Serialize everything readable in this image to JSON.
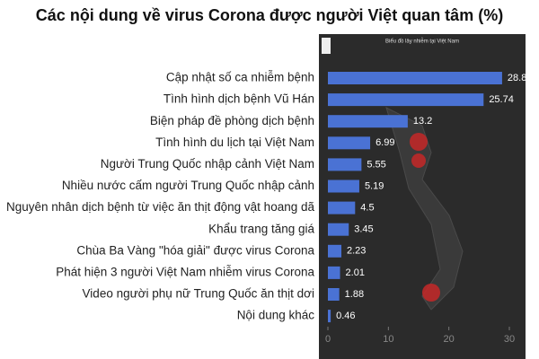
{
  "chart_data": {
    "type": "hbar",
    "title": "Các nội dung về virus Corona được người Việt quan tâm (%)",
    "annotations": [
      "Biểu đồ lây nhiễm tại Việt Nam"
    ],
    "categories": [
      "Cập nhật số ca nhiễm bệnh",
      "Tình hình dịch bệnh Vũ Hán",
      "Biện pháp đề phòng dịch bệnh",
      "Tình hình du lịch tại Việt Nam",
      "Người Trung Quốc nhập cảnh Việt Nam",
      "Nhiều nước cấm người Trung Quốc nhập cảnh",
      "Nguyên nhân dịch bệnh từ việc ăn thịt động vật hoang dã",
      "Khẩu trang tăng giá",
      "Chùa Ba Vàng \"hóa giải\" được virus Corona",
      "Phát hiện 3 người Việt Nam nhiễm virus Corona",
      "Video người phụ nữ Trung Quốc ăn thịt dơi",
      "Nội dung khác"
    ],
    "values": [
      28.8,
      25.74,
      13.2,
      6.99,
      5.55,
      5.19,
      4.5,
      3.45,
      2.23,
      2.01,
      1.88,
      0.46
    ],
    "color": "#4a72d4",
    "xlim": [
      0,
      30
    ],
    "xticks": [
      0,
      10,
      20,
      30
    ]
  }
}
